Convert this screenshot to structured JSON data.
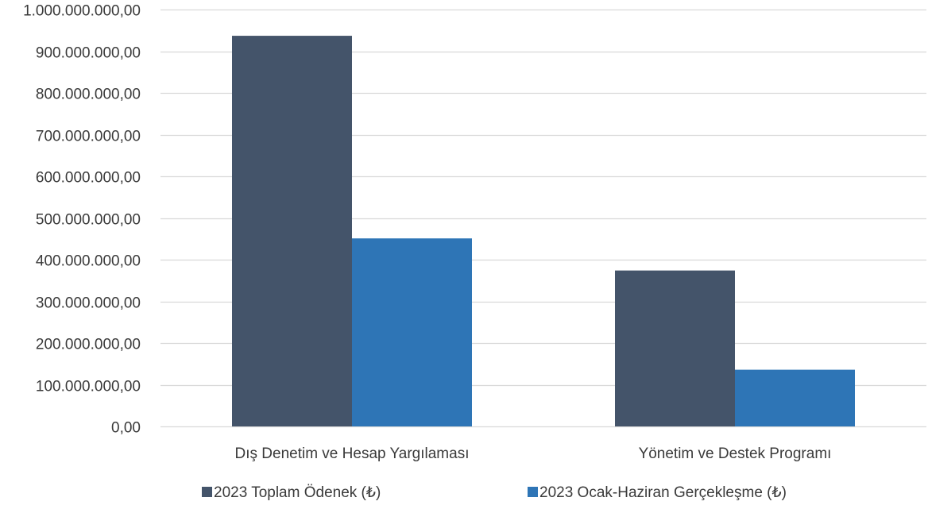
{
  "chart_data": {
    "type": "bar",
    "title": "",
    "xlabel": "",
    "ylabel": "",
    "categories": [
      "Dış Denetim ve Hesap Yargılaması",
      "Yönetim ve Destek Programı"
    ],
    "series": [
      {
        "name": "2023 Toplam Ödenek (₺)",
        "color": "#44546a",
        "values": [
          937000000,
          374000000
        ]
      },
      {
        "name": "2023 Ocak-Haziran Gerçekleşme (₺)",
        "color": "#2e75b6",
        "values": [
          451000000,
          136000000
        ]
      }
    ],
    "ylim": [
      0,
      1000000000
    ],
    "yticks": [
      0,
      100000000,
      200000000,
      300000000,
      400000000,
      500000000,
      600000000,
      700000000,
      800000000,
      900000000,
      1000000000
    ],
    "ytick_labels": [
      "0,00",
      "100.000.000,00",
      "200.000.000,00",
      "300.000.000,00",
      "400.000.000,00",
      "500.000.000,00",
      "600.000.000,00",
      "700.000.000,00",
      "800.000.000,00",
      "900.000.000,00",
      "1.000.000.000,00"
    ],
    "grid": true,
    "legend": "bottom",
    "gridline_color": "#d9d9d9"
  }
}
